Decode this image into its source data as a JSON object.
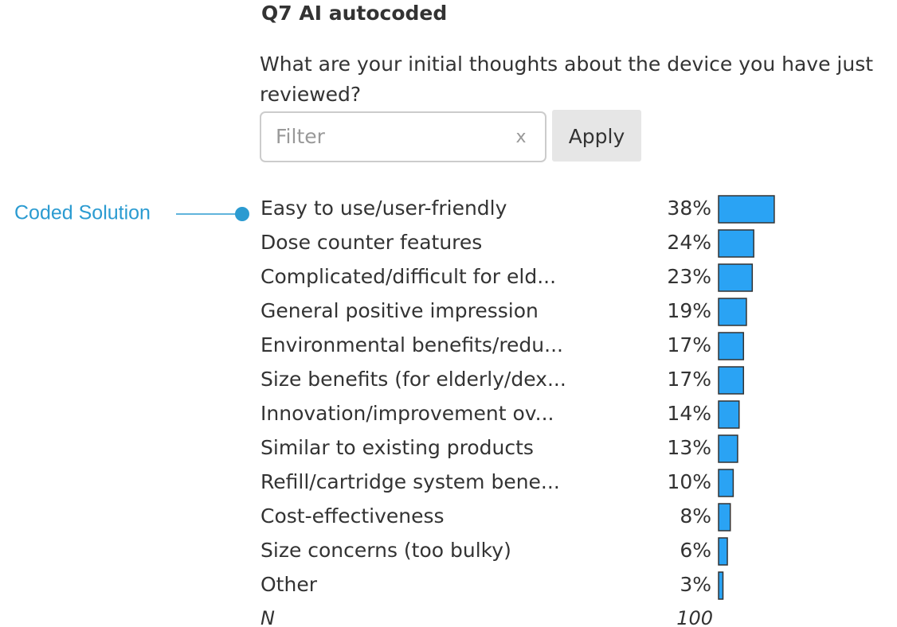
{
  "title": "Q7 AI autocoded",
  "question": "What are your initial thoughts about the device you have just reviewed?",
  "filter": {
    "placeholder": "Filter",
    "clear": "x",
    "button": "Apply"
  },
  "annotation": "Coded Solution",
  "chart_data": {
    "type": "bar",
    "categories": [
      "Easy to use/user-friendly",
      "Dose counter features",
      "Complicated/difficult for eld...",
      "General positive impression",
      "Environmental benefits/redu...",
      "Size benefits (for elderly/dex...",
      "Innovation/improvement ov...",
      "Similar to existing products",
      "Refill/cartridge system bene...",
      "Cost-effectiveness",
      "Size concerns (too bulky)",
      "Other"
    ],
    "values": [
      38,
      24,
      23,
      19,
      17,
      17,
      14,
      13,
      10,
      8,
      6,
      3
    ],
    "value_labels": [
      "38%",
      "24%",
      "23%",
      "19%",
      "17%",
      "17%",
      "14%",
      "13%",
      "10%",
      "8%",
      "6%",
      "3%"
    ],
    "color": "#2aa3f4"
  },
  "total": {
    "label": "N",
    "value": 100
  }
}
